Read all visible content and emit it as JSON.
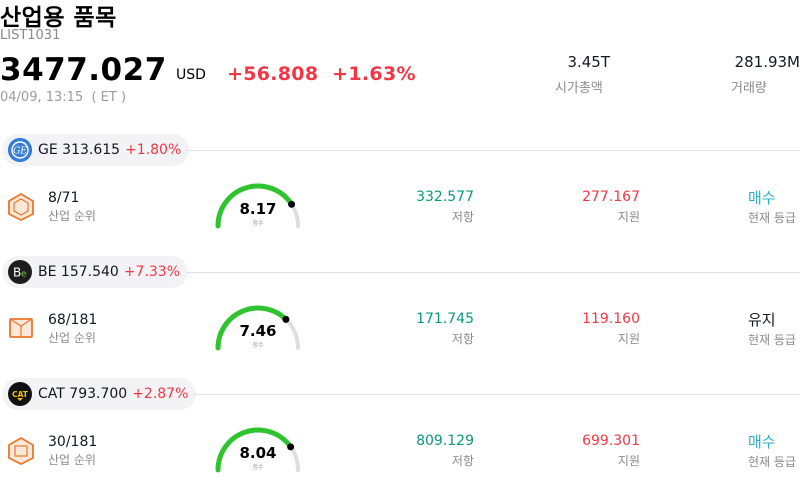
{
  "header": {
    "title": "산업용 품목",
    "code": "LIST1031",
    "price": "3477.027",
    "currency": "USD",
    "change": "+56.808  +1.63%",
    "time": "04/09, 13:15  ( ET )"
  },
  "stats": {
    "market_cap": {
      "value": "3.45T",
      "label": "시가총액"
    },
    "volume": {
      "value": "281.93M",
      "label": "거래량"
    }
  },
  "colors": {
    "up_red": "#f23645",
    "resist_green": "#089981",
    "buy_teal": "#2ab0c8",
    "gauge_green": "#2fc32f"
  },
  "rows": [
    {
      "ticker": "GE",
      "price": "313.615",
      "change": "+1.80%",
      "logo": "ge-logo-icon",
      "rank": "8/71",
      "rank_label": "산업 순위",
      "score": "8.17",
      "score_level": 0.817,
      "score_label": "점수",
      "resistance": "332.577",
      "resistance_label": "저항",
      "support": "277.167",
      "support_label": "지원",
      "signal": "매수",
      "signal_label": "현재 등급"
    },
    {
      "ticker": "BE",
      "price": "157.540",
      "change": "+7.33%",
      "logo": "be-logo-icon",
      "rank": "68/181",
      "rank_label": "산업 순위",
      "score": "7.46",
      "score_level": 0.746,
      "score_label": "점수",
      "resistance": "171.745",
      "resistance_label": "저항",
      "support": "119.160",
      "support_label": "지원",
      "signal": "유지",
      "signal_label": "현재 등급"
    },
    {
      "ticker": "CAT",
      "price": "793.700",
      "change": "+2.87%",
      "logo": "cat-logo-icon",
      "rank": "30/181",
      "rank_label": "산업 순위",
      "score": "8.04",
      "score_level": 0.804,
      "score_label": "점수",
      "resistance": "809.129",
      "resistance_label": "저항",
      "support": "699.301",
      "support_label": "지원",
      "signal": "매수",
      "signal_label": "현재 등급"
    }
  ]
}
